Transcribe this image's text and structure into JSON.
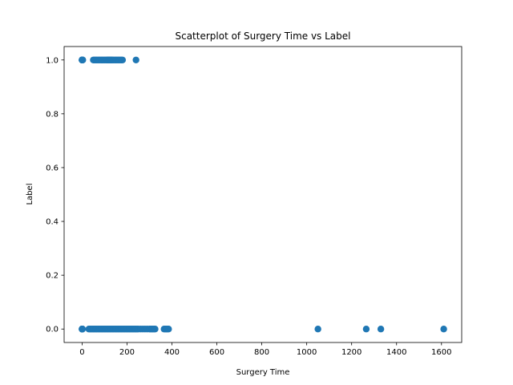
{
  "chart_data": {
    "type": "scatter",
    "title": "Scatterplot of Surgery Time vs Label",
    "xlabel": "Surgery Time",
    "ylabel": "Label",
    "xlim": [
      -80,
      1690
    ],
    "ylim": [
      -0.05,
      1.05
    ],
    "xticks": [
      0,
      200,
      400,
      600,
      800,
      1000,
      1200,
      1400,
      1600
    ],
    "yticks": [
      0.0,
      0.2,
      0.4,
      0.6,
      0.8,
      1.0
    ],
    "ytick_labels": [
      "0.0",
      "0.2",
      "0.4",
      "0.6",
      "0.8",
      "1.0"
    ],
    "grid": false,
    "marker_color": "#1f77b4",
    "series": [
      {
        "x": [
          0,
          0,
          0,
          0,
          0,
          0,
          1,
          2,
          3,
          50,
          55,
          60,
          65,
          70,
          75,
          80,
          85,
          90,
          95,
          100,
          105,
          110,
          112,
          115,
          118,
          120,
          122,
          125,
          128,
          130,
          132,
          135,
          140,
          145,
          150,
          155,
          160,
          165,
          170,
          175,
          180,
          240,
          0,
          0,
          0,
          0,
          0,
          1,
          2,
          30,
          35,
          40,
          45,
          50,
          55,
          60,
          65,
          70,
          75,
          80,
          85,
          90,
          95,
          100,
          105,
          110,
          115,
          120,
          125,
          130,
          135,
          140,
          145,
          150,
          155,
          160,
          165,
          170,
          175,
          180,
          185,
          190,
          195,
          200,
          205,
          210,
          215,
          220,
          225,
          230,
          235,
          240,
          245,
          250,
          260,
          270,
          280,
          290,
          300,
          305,
          310,
          315,
          320,
          325,
          365,
          370,
          375,
          380,
          385,
          1050,
          1265,
          1330,
          1610
        ],
        "y": [
          1,
          1,
          1,
          1,
          1,
          1,
          1,
          1,
          1,
          1,
          1,
          1,
          1,
          1,
          1,
          1,
          1,
          1,
          1,
          1,
          1,
          1,
          1,
          1,
          1,
          1,
          1,
          1,
          1,
          1,
          1,
          1,
          1,
          1,
          1,
          1,
          1,
          1,
          1,
          1,
          1,
          1,
          0,
          0,
          0,
          0,
          0,
          0,
          0,
          0,
          0,
          0,
          0,
          0,
          0,
          0,
          0,
          0,
          0,
          0,
          0,
          0,
          0,
          0,
          0,
          0,
          0,
          0,
          0,
          0,
          0,
          0,
          0,
          0,
          0,
          0,
          0,
          0,
          0,
          0,
          0,
          0,
          0,
          0,
          0,
          0,
          0,
          0,
          0,
          0,
          0,
          0,
          0,
          0,
          0,
          0,
          0,
          0,
          0,
          0,
          0,
          0,
          0,
          0,
          0,
          0,
          0,
          0,
          0,
          0,
          0,
          0,
          0
        ]
      }
    ]
  }
}
